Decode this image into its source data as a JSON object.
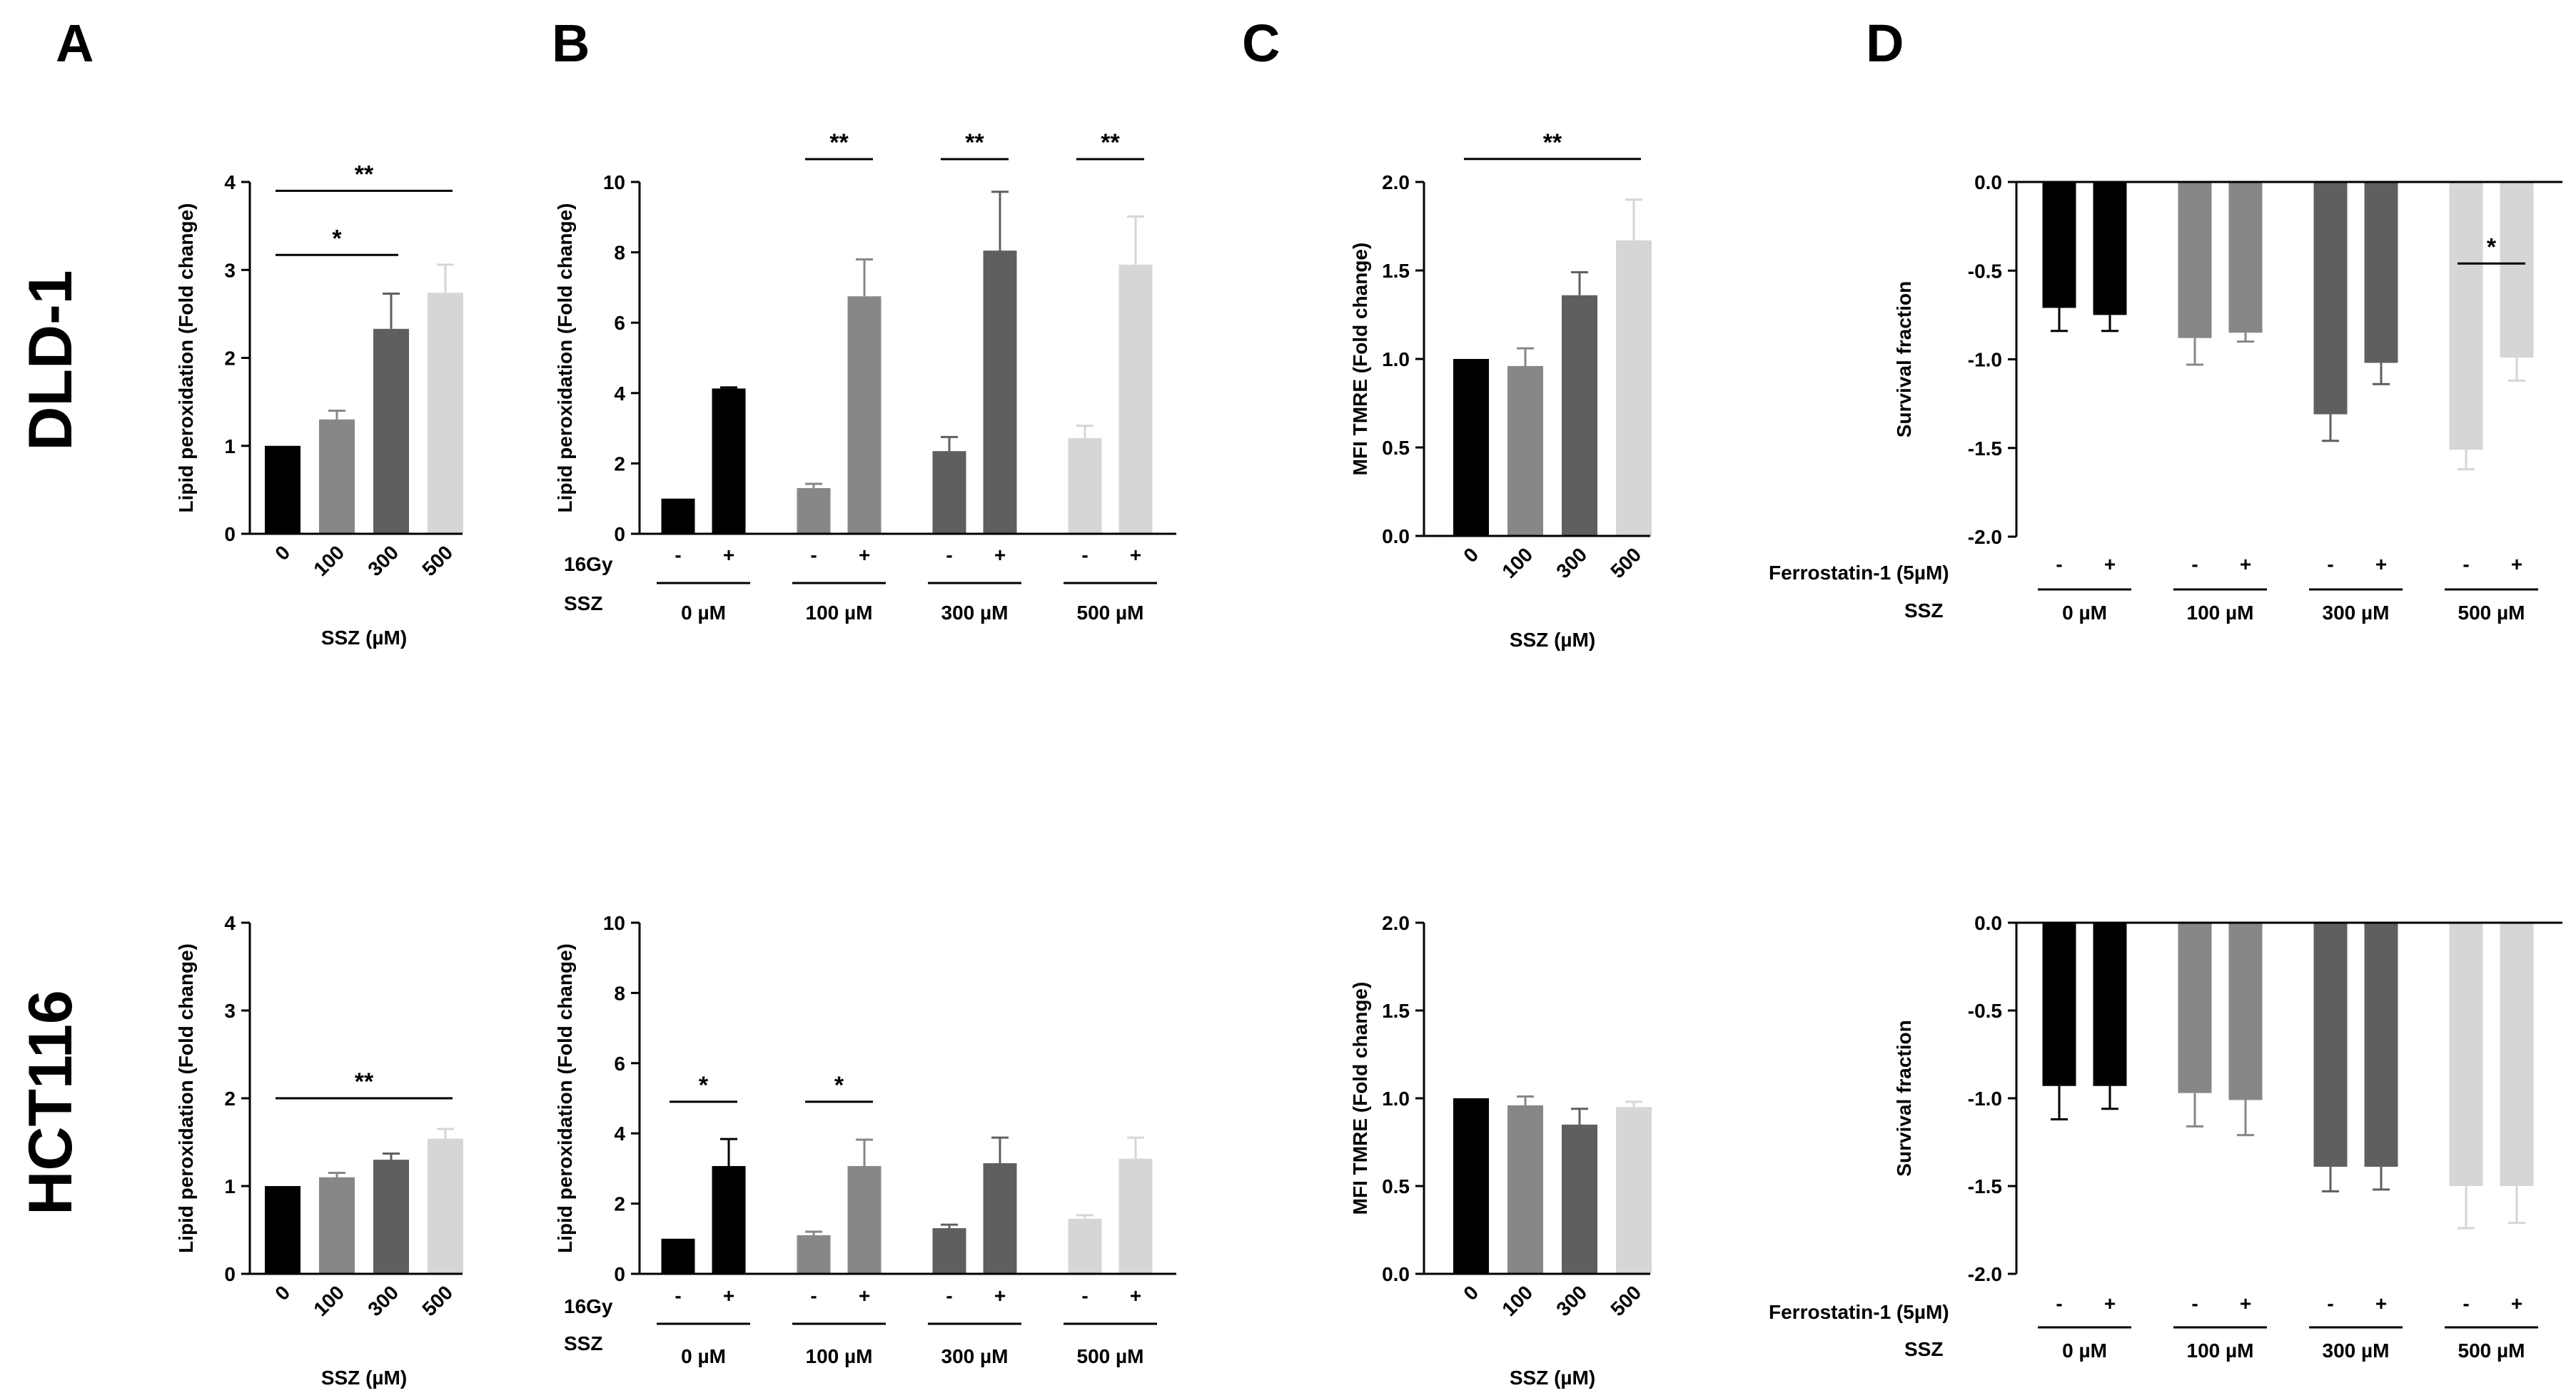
{
  "colors": {
    "c0": "#000000",
    "c100": "#878787",
    "c300": "#5f5f5f",
    "c500": "#d6d6d6"
  },
  "panel_letters": [
    "A",
    "B",
    "C",
    "D"
  ],
  "row_labels": [
    "DLD-1",
    "HCT116"
  ],
  "chart_data": [
    {
      "id": "A1",
      "type": "bar",
      "title": "",
      "ylabel": "Lipid peroxidation (Fold change)",
      "xlabel": "SSZ (µM)",
      "categories": [
        "0",
        "100",
        "300",
        "500"
      ],
      "values": [
        1.0,
        1.3,
        2.33,
        2.74
      ],
      "errors": [
        0,
        0.1,
        0.4,
        0.32
      ],
      "ylim": [
        0,
        4
      ],
      "yticks": [
        "0",
        "1",
        "2",
        "3",
        "4"
      ],
      "significance": [
        {
          "from": 0,
          "to": 2,
          "label": "*",
          "y": 3.17
        },
        {
          "from": 0,
          "to": 3,
          "label": "**",
          "y": 3.9
        }
      ]
    },
    {
      "id": "B1",
      "type": "bar",
      "title": "",
      "ylabel": "Lipid peroxidation (Fold change)",
      "row1_label": "16Gy",
      "row2_label": "SSZ",
      "pm": [
        "-",
        "+"
      ],
      "groups": [
        "0 µM",
        "100 µM",
        "300 µM",
        "500 µM"
      ],
      "values": [
        1.0,
        4.13,
        1.3,
        6.75,
        2.35,
        8.05,
        2.72,
        7.65
      ],
      "errors": [
        0,
        0.03,
        0.12,
        1.05,
        0.4,
        1.67,
        0.35,
        1.37
      ],
      "ylim": [
        0,
        10
      ],
      "yticks": [
        "0",
        "2",
        "4",
        "6",
        "8",
        "10"
      ],
      "significance": [
        {
          "from": 2,
          "to": 3,
          "label": "**",
          "y": 10.65
        },
        {
          "from": 4,
          "to": 5,
          "label": "**",
          "y": 10.65
        },
        {
          "from": 6,
          "to": 7,
          "label": "**",
          "y": 10.65
        }
      ]
    },
    {
      "id": "C1",
      "type": "bar",
      "title": "",
      "ylabel": "MFI TMRE (Fold change)",
      "xlabel": "SSZ (µM)",
      "categories": [
        "0",
        "100",
        "300",
        "500"
      ],
      "values": [
        1.0,
        0.96,
        1.36,
        1.67
      ],
      "errors": [
        0,
        0.1,
        0.13,
        0.23
      ],
      "ylim": [
        0,
        2.0
      ],
      "yticks": [
        "0.0",
        "0.5",
        "1.0",
        "1.5",
        "2.0"
      ],
      "significance": [
        {
          "from": 0,
          "to": 3,
          "label": "**",
          "y": 2.13
        }
      ]
    },
    {
      "id": "D1",
      "type": "bar",
      "title": "",
      "ylabel": "Survival fraction",
      "row1_label": "Ferrostatin-1 (5µM)",
      "row2_label": "SSZ",
      "pm": [
        "-",
        "+"
      ],
      "groups": [
        "0 µM",
        "100 µM",
        "300 µM",
        "500 µM"
      ],
      "values": [
        -0.71,
        -0.75,
        -0.88,
        -0.85,
        -1.31,
        -1.02,
        -1.51,
        -0.99
      ],
      "errors": [
        0.13,
        0.09,
        0.15,
        0.05,
        0.15,
        0.12,
        0.11,
        0.13
      ],
      "ylim": [
        -2.0,
        0.0
      ],
      "yticks": [
        "0.0",
        "-0.5",
        "-1.0",
        "-1.5",
        "-2.0"
      ],
      "significance": [
        {
          "from": 6,
          "to": 7,
          "label": "*",
          "y": -0.46
        }
      ]
    },
    {
      "id": "A2",
      "type": "bar",
      "title": "",
      "ylabel": "Lipid peroxidation (Fold change)",
      "xlabel": "SSZ (µM)",
      "categories": [
        "0",
        "100",
        "300",
        "500"
      ],
      "values": [
        1.0,
        1.1,
        1.3,
        1.54
      ],
      "errors": [
        0,
        0.05,
        0.07,
        0.11
      ],
      "ylim": [
        0,
        4
      ],
      "yticks": [
        "0",
        "1",
        "2",
        "3",
        "4"
      ],
      "significance": [
        {
          "from": 0,
          "to": 3,
          "label": "**",
          "y": 2.0
        }
      ]
    },
    {
      "id": "B2",
      "type": "bar",
      "title": "",
      "ylabel": "Lipid peroxidation (Fold change)",
      "row1_label": "16Gy",
      "row2_label": "SSZ",
      "pm": [
        "-",
        "+"
      ],
      "groups": [
        "0 µM",
        "100 µM",
        "300 µM",
        "500 µM"
      ],
      "values": [
        1.0,
        3.07,
        1.1,
        3.07,
        1.3,
        3.15,
        1.57,
        3.28
      ],
      "errors": [
        0,
        0.77,
        0.1,
        0.75,
        0.1,
        0.73,
        0.1,
        0.6
      ],
      "ylim": [
        0,
        10
      ],
      "yticks": [
        "0",
        "2",
        "4",
        "6",
        "8",
        "10"
      ],
      "significance": [
        {
          "from": 0,
          "to": 1,
          "label": "*",
          "y": 4.9
        },
        {
          "from": 2,
          "to": 3,
          "label": "*",
          "y": 4.9
        }
      ]
    },
    {
      "id": "C2",
      "type": "bar",
      "title": "",
      "ylabel": "MFI TMRE (Fold change)",
      "xlabel": "SSZ (µM)",
      "categories": [
        "0",
        "100",
        "300",
        "500"
      ],
      "values": [
        1.0,
        0.96,
        0.85,
        0.95
      ],
      "errors": [
        0,
        0.05,
        0.09,
        0.03
      ],
      "ylim": [
        0,
        2.0
      ],
      "yticks": [
        "0.0",
        "0.5",
        "1.0",
        "1.5",
        "2.0"
      ],
      "significance": []
    },
    {
      "id": "D2",
      "type": "bar",
      "title": "",
      "ylabel": "Survival fraction",
      "row1_label": "Ferrostatin-1 (5µM)",
      "row2_label": "SSZ",
      "pm": [
        "-",
        "+"
      ],
      "groups": [
        "0 µM",
        "100 µM",
        "300 µM",
        "500 µM"
      ],
      "values": [
        -0.93,
        -0.93,
        -0.97,
        -1.01,
        -1.39,
        -1.39,
        -1.5,
        -1.5
      ],
      "errors": [
        0.19,
        0.13,
        0.19,
        0.2,
        0.14,
        0.13,
        0.24,
        0.21
      ],
      "ylim": [
        -2.0,
        0.0
      ],
      "yticks": [
        "0.0",
        "-0.5",
        "-1.0",
        "-1.5",
        "-2.0"
      ],
      "significance": []
    }
  ]
}
